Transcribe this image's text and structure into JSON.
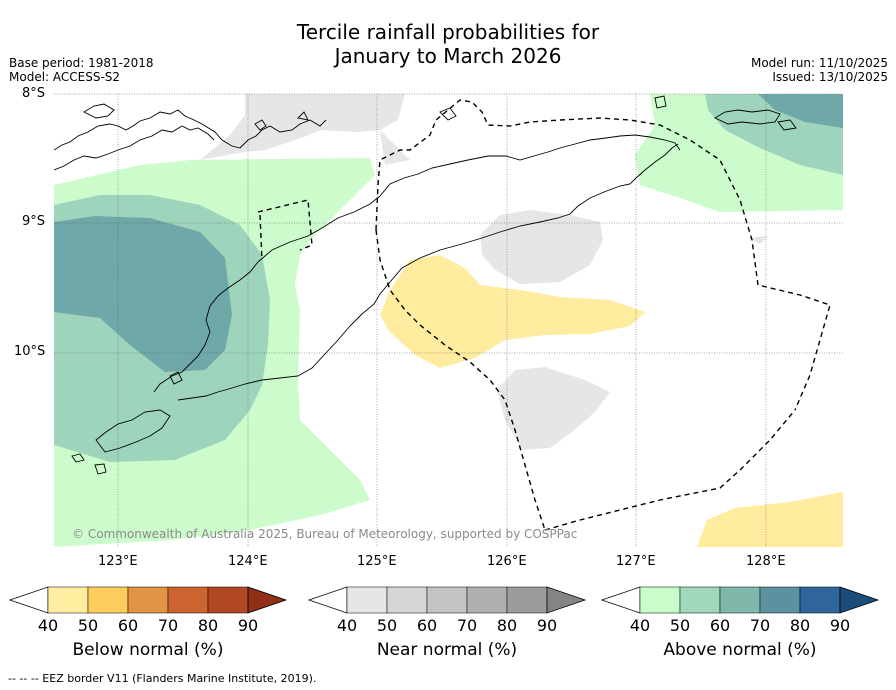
{
  "title": {
    "line1": "Tercile rainfall probabilities for",
    "line2": "January to March 2026"
  },
  "meta": {
    "base_period": "Base period: 1981-2018",
    "model": "Model: ACCESS-S2",
    "model_run": "Model run: 11/10/2025",
    "issued": "Issued: 13/10/2025"
  },
  "axes": {
    "lat_labels": [
      "8°S",
      "9°S",
      "10°S"
    ],
    "lon_labels": [
      "123°E",
      "124°E",
      "125°E",
      "126°E",
      "127°E",
      "128°E"
    ]
  },
  "copyright": "© Commonwealth of Australia 2025, Bureau of Meteorology, supported by COSPPac",
  "colorbars": {
    "below": {
      "title": "Below normal (%)",
      "ticks": [
        "40",
        "50",
        "60",
        "70",
        "80",
        "90"
      ],
      "colors": [
        "#ffffff",
        "#ffeda0",
        "#fecc5c",
        "#e19444",
        "#cd6532",
        "#b04825",
        "#8f3019"
      ]
    },
    "near": {
      "title": "Near normal (%)",
      "ticks": [
        "40",
        "50",
        "60",
        "70",
        "80",
        "90"
      ],
      "colors": [
        "#ffffff",
        "#e6e6e6",
        "#d6d6d6",
        "#c4c4c4",
        "#b0b0b0",
        "#9c9c9c",
        "#858585"
      ]
    },
    "above": {
      "title": "Above normal (%)",
      "ticks": [
        "40",
        "50",
        "60",
        "70",
        "80",
        "90"
      ],
      "colors": [
        "#ffffff",
        "#c8fcc8",
        "#a0d8bb",
        "#7fb8aa",
        "#5b92a0",
        "#2f6599",
        "#1c4c7a"
      ]
    }
  },
  "footnote": "--  --  -- EEZ border V11 (Flanders Marine Institute, 2019).",
  "map_colors": {
    "above_40_50": "#ccfccc",
    "above_50_60": "#9ed4bb",
    "above_60_70": "#6ea8a8",
    "below_40_50": "#ffec9f",
    "near_40_50": "#e6e6e6"
  }
}
